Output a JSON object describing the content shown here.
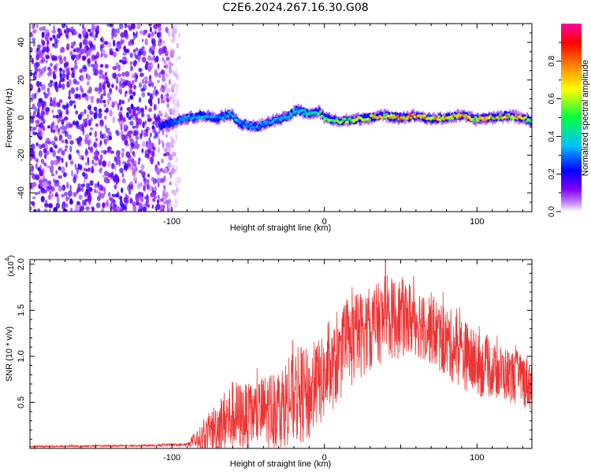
{
  "figure": {
    "title": "C2E6.2024.267.16.30.G08"
  },
  "chart_data": [
    {
      "type": "heatmap",
      "title": "C2E6.2024.267.16.30.G08",
      "xlabel": "Height of straight line (km)",
      "ylabel": "Frequency (Hz)",
      "xlim": [
        -193,
        136
      ],
      "ylim": [
        -50,
        50
      ],
      "x_ticks": [
        -100,
        0,
        100
      ],
      "y_ticks": [
        -40,
        -20,
        0,
        20,
        40
      ],
      "x_tick_labels": [
        "-100",
        "0",
        "100"
      ],
      "y_tick_labels": [
        "-40",
        "-20",
        "0",
        "20",
        "40"
      ],
      "colorbar": {
        "label": "Normalized spectral amplitude",
        "range": [
          0,
          1
        ],
        "ticks": [
          0.0,
          0.2,
          0.4,
          0.6,
          0.8
        ],
        "tick_labels": [
          "0.0",
          "0.2",
          "0.4",
          "0.6",
          "0.8"
        ],
        "colors": [
          "#ffffff",
          "#8000ff",
          "#0000ff",
          "#00c0ff",
          "#00ff40",
          "#ffff00",
          "#ff8000",
          "#ff0000",
          "#ff00a0"
        ]
      },
      "noise_region": {
        "x": [
          -193,
          -95
        ],
        "amplitude": 0.15
      },
      "ridge": {
        "x": [
          -108,
          -100,
          -90,
          -80,
          -70,
          -62,
          -55,
          -45,
          -35,
          -25,
          -18,
          -10,
          -3,
          0,
          10,
          20,
          30,
          40,
          50,
          60,
          70,
          80,
          90,
          100,
          110,
          120,
          130,
          136
        ],
        "freq": [
          -4,
          -3,
          0,
          1,
          0,
          2,
          -3,
          -5,
          -2,
          0,
          4,
          2,
          3,
          0,
          -2,
          -1,
          0,
          1,
          0,
          1,
          -1,
          0,
          1,
          -1,
          0,
          1,
          0,
          -2
        ],
        "amplitude": [
          0.25,
          0.3,
          0.35,
          0.35,
          0.35,
          0.4,
          0.35,
          0.35,
          0.35,
          0.4,
          0.4,
          0.45,
          0.55,
          0.6,
          0.6,
          0.65,
          0.7,
          0.75,
          0.8,
          0.85,
          0.8,
          0.75,
          0.75,
          0.7,
          0.75,
          0.75,
          0.7,
          0.6
        ]
      }
    },
    {
      "type": "line",
      "xlabel": "Height of straight line (km)",
      "ylabel": "SNR (10 * v/v)",
      "y_multiplier": "(x10",
      "y_multiplier_exp": "4",
      "y_multiplier_close": ")",
      "xlim": [
        -193,
        136
      ],
      "ylim": [
        0,
        2.05
      ],
      "x_ticks": [
        -100,
        0,
        100
      ],
      "y_ticks": [
        0.5,
        1.0,
        1.5,
        2.0
      ],
      "x_tick_labels": [
        "-100",
        "0",
        "100"
      ],
      "y_tick_labels": [
        "0.5",
        "1.0",
        "1.5",
        "2.0"
      ],
      "color": "#ee3333",
      "envelope": {
        "x": [
          -193,
          -120,
          -90,
          -80,
          -70,
          -60,
          -50,
          -40,
          -30,
          -20,
          -15,
          -10,
          -5,
          0,
          10,
          20,
          30,
          40,
          50,
          60,
          70,
          80,
          90,
          100,
          110,
          120,
          130,
          136
        ],
        "mean": [
          0.02,
          0.03,
          0.04,
          0.12,
          0.25,
          0.35,
          0.35,
          0.4,
          0.45,
          0.55,
          0.6,
          0.55,
          0.7,
          0.75,
          0.95,
          1.2,
          1.3,
          1.4,
          1.42,
          1.4,
          1.3,
          1.15,
          1.05,
          0.9,
          0.85,
          0.8,
          0.75,
          0.7
        ],
        "spread": [
          0.01,
          0.01,
          0.02,
          0.15,
          0.3,
          0.4,
          0.35,
          0.4,
          0.45,
          0.5,
          0.55,
          0.5,
          0.5,
          0.45,
          0.45,
          0.5,
          0.45,
          0.45,
          0.45,
          0.4,
          0.4,
          0.4,
          0.4,
          0.35,
          0.3,
          0.3,
          0.3,
          0.3
        ],
        "peak": {
          "x": 40,
          "y": 2.03
        }
      }
    }
  ]
}
